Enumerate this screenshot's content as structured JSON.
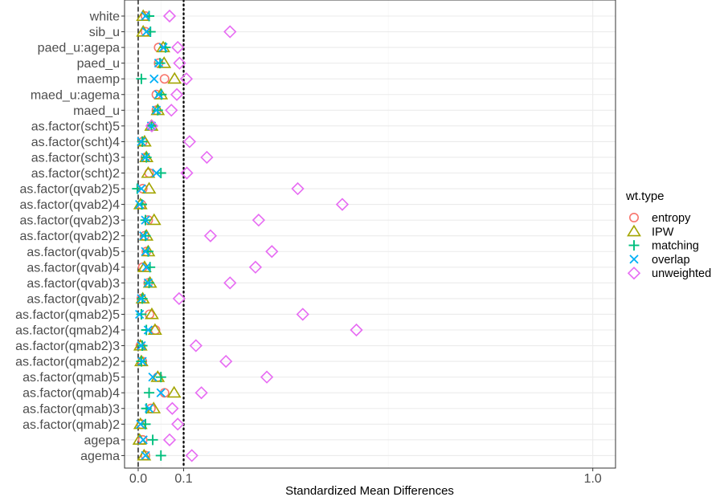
{
  "chart_data": {
    "type": "scatter",
    "xlabel": "Standardized Mean Differences",
    "ylabel": "",
    "xlim": [
      -0.03,
      1.05
    ],
    "x_ticks": [
      0.0,
      0.1,
      1.0
    ],
    "x_tick_labels": [
      "0.0",
      "0.1",
      "1.0"
    ],
    "reference_lines": [
      {
        "x": 0.0,
        "style": "dashed"
      },
      {
        "x": 0.1,
        "style": "dotted"
      }
    ],
    "grid": true,
    "legend_title": "wt.type",
    "legend_position": "right",
    "categories": [
      "white",
      "sib_u",
      "paed_u:agepa",
      "paed_u",
      "maemp",
      "maed_u:agema",
      "maed_u",
      "as.factor(scht)5",
      "as.factor(scht)4",
      "as.factor(scht)3",
      "as.factor(scht)2",
      "as.factor(qvab2)5",
      "as.factor(qvab2)4",
      "as.factor(qvab2)3",
      "as.factor(qvab2)2",
      "as.factor(qvab)5",
      "as.factor(qvab)4",
      "as.factor(qvab)3",
      "as.factor(qvab)2",
      "as.factor(qmab2)5",
      "as.factor(qmab2)4",
      "as.factor(qmab2)3",
      "as.factor(qmab2)2",
      "as.factor(qmab)5",
      "as.factor(qmab)4",
      "as.factor(qmab)3",
      "as.factor(qmab)2",
      "agepa",
      "agema"
    ],
    "series": [
      {
        "name": "entropy",
        "color": "#F8766D",
        "shape": "circle",
        "values": [
          0.016,
          0.016,
          0.045,
          0.045,
          0.058,
          0.04,
          0.04,
          0.029,
          0.01,
          0.016,
          0.024,
          0.01,
          0.007,
          0.022,
          0.014,
          0.018,
          0.01,
          0.022,
          0.007,
          0.025,
          0.038,
          0.005,
          0.009,
          0.043,
          0.058,
          0.028,
          0.007,
          0.01,
          0.016
        ]
      },
      {
        "name": "IPW",
        "color": "#A3A500",
        "shape": "triangle",
        "values": [
          0.011,
          0.011,
          0.055,
          0.057,
          0.08,
          0.05,
          0.043,
          0.029,
          0.014,
          0.018,
          0.022,
          0.024,
          0.005,
          0.035,
          0.018,
          0.022,
          0.014,
          0.026,
          0.01,
          0.03,
          0.037,
          0.005,
          0.007,
          0.043,
          0.079,
          0.034,
          0.005,
          0.003,
          0.013
        ]
      },
      {
        "name": "matching",
        "color": "#00BF7D",
        "shape": "plus",
        "values": [
          0.024,
          0.027,
          0.06,
          0.048,
          0.007,
          0.051,
          0.043,
          0.029,
          0.009,
          0.018,
          0.05,
          -0.002,
          0.008,
          0.016,
          0.016,
          0.022,
          0.026,
          0.024,
          0.009,
          0.007,
          0.018,
          0.009,
          0.007,
          0.05,
          0.024,
          0.018,
          0.016,
          0.032,
          0.05
        ]
      },
      {
        "name": "overlap",
        "color": "#00B0F6",
        "shape": "x",
        "values": [
          0.016,
          0.018,
          0.055,
          0.045,
          0.035,
          0.045,
          0.04,
          0.029,
          0.007,
          0.016,
          0.04,
          0.007,
          0.003,
          0.016,
          0.012,
          0.016,
          0.018,
          0.022,
          0.007,
          0.003,
          0.022,
          0.007,
          0.009,
          0.032,
          0.05,
          0.024,
          0.005,
          0.011,
          0.016
        ]
      },
      {
        "name": "unweighted",
        "color": "#E76BF3",
        "shape": "diamond",
        "values": [
          0.069,
          0.202,
          0.087,
          0.091,
          0.106,
          0.085,
          0.073,
          0.03,
          0.113,
          0.151,
          0.107,
          0.351,
          0.449,
          0.265,
          0.159,
          0.294,
          0.258,
          0.202,
          0.09,
          0.362,
          0.48,
          0.127,
          0.193,
          0.283,
          0.139,
          0.075,
          0.087,
          0.069,
          0.118
        ]
      }
    ]
  }
}
